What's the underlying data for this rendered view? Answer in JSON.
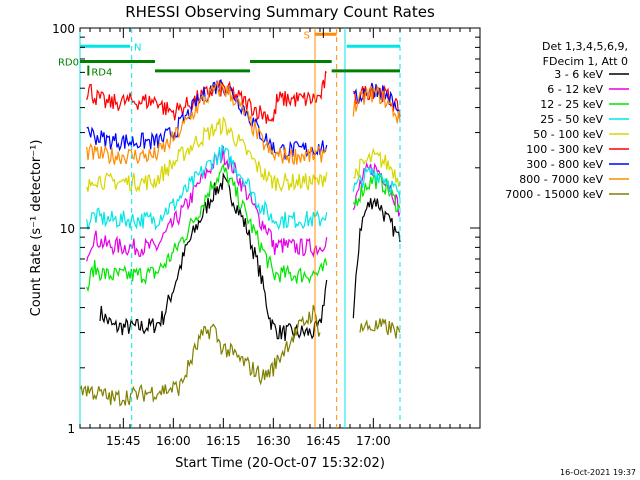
{
  "chart_data": {
    "type": "line",
    "title": "RHESSI Observing Summary Count Rates",
    "xlabel": "Start Time (20-Oct-07 15:32:02)",
    "ylabel": "Count Rate (s⁻¹ detector⁻¹)",
    "yscale": "log",
    "ylim": [
      1,
      100
    ],
    "xlim_min": [
      0,
      120
    ],
    "x_ticks": [
      {
        "min": 13,
        "label": "15:45"
      },
      {
        "min": 28,
        "label": "16:00"
      },
      {
        "min": 43,
        "label": "16:15"
      },
      {
        "min": 58,
        "label": "16:30"
      },
      {
        "min": 73,
        "label": "16:45"
      },
      {
        "min": 88,
        "label": "17:00"
      }
    ],
    "y_ticks": [
      {
        "value": 1,
        "label": "1"
      },
      {
        "value": 10,
        "label": "10"
      },
      {
        "value": 100,
        "label": "100"
      }
    ],
    "legend_header": [
      "Det 1,3,4,5,6,9,",
      "FDecim 1, Att 0"
    ],
    "legend_position": "right",
    "series": [
      {
        "name": "3 - 6 keV",
        "color": "#000000",
        "x": [
          0,
          2,
          4,
          6,
          10,
          15,
          20,
          23,
          25,
          28,
          32,
          36,
          40,
          43,
          46,
          50,
          54,
          57,
          58,
          60,
          65,
          70,
          72,
          74,
          81,
          82,
          84,
          86,
          88,
          90,
          92,
          94,
          96
        ],
        "y": [
          null,
          null,
          null,
          3.8,
          3.2,
          3.2,
          3.2,
          3.3,
          3.6,
          5,
          8,
          11,
          15,
          17,
          14,
          10,
          6,
          3.5,
          3.2,
          3,
          3,
          3,
          3.2,
          5.5,
          null,
          3.5,
          10,
          12.5,
          14,
          13,
          11,
          10,
          8.5
        ]
      },
      {
        "name": "6 - 12 keV",
        "color": "#e600e6",
        "x": [
          2,
          4,
          8,
          15,
          22,
          23,
          25,
          28,
          32,
          36,
          40,
          43,
          46,
          50,
          54,
          57,
          58,
          60,
          65,
          70,
          72,
          74,
          81,
          82,
          84,
          86,
          88,
          90,
          92,
          94,
          96
        ],
        "y": [
          7.5,
          9,
          8.2,
          8,
          8,
          8,
          9,
          10.5,
          13,
          17,
          21,
          23.5,
          20,
          15,
          11,
          9.5,
          8,
          8.2,
          8,
          8,
          8,
          9,
          null,
          12,
          16.5,
          19,
          20,
          19,
          17.5,
          15,
          12
        ]
      },
      {
        "name": "12 - 25 keV",
        "color": "#00e600",
        "x": [
          2,
          4,
          8,
          15,
          22,
          23,
          25,
          28,
          32,
          36,
          40,
          43,
          46,
          50,
          54,
          57,
          58,
          60,
          65,
          70,
          72,
          74,
          81,
          82,
          84,
          86,
          88,
          90,
          92,
          94,
          96
        ],
        "y": [
          4.8,
          6.3,
          5.8,
          5.8,
          5.9,
          6,
          6.5,
          7.5,
          9.5,
          12.5,
          17,
          19.5,
          16,
          11.5,
          8.3,
          6.5,
          5.8,
          5.9,
          5.8,
          5.9,
          5.9,
          6.5,
          null,
          13,
          15,
          16.5,
          17.5,
          17,
          16,
          14,
          12.5
        ]
      },
      {
        "name": "25 - 50 keV",
        "color": "#00e6e6",
        "x": [
          2,
          4,
          8,
          15,
          22,
          23,
          25,
          28,
          32,
          36,
          40,
          43,
          46,
          50,
          54,
          57,
          58,
          60,
          65,
          70,
          72,
          74,
          81,
          82,
          84,
          86,
          88,
          90,
          92,
          94,
          96
        ],
        "y": [
          10.5,
          11.5,
          11,
          11,
          11,
          11,
          12,
          13,
          15.5,
          18.5,
          22,
          24,
          21,
          17,
          13,
          11.5,
          11,
          11,
          11,
          11,
          11,
          12,
          null,
          15.5,
          17,
          18.5,
          19,
          18.5,
          17.5,
          16,
          14
        ]
      },
      {
        "name": "50 - 100 keV",
        "color": "#d7d700",
        "x": [
          2,
          4,
          8,
          15,
          22,
          23,
          25,
          28,
          32,
          36,
          40,
          43,
          46,
          50,
          54,
          57,
          58,
          60,
          65,
          70,
          72,
          74,
          81,
          82,
          84,
          86,
          88,
          90,
          92,
          94,
          96
        ],
        "y": [
          15,
          18,
          17,
          17,
          17,
          17.5,
          19,
          21,
          24.5,
          28,
          31,
          33,
          29,
          24,
          19.5,
          17.5,
          17,
          17,
          17,
          17,
          17,
          19,
          null,
          18,
          20,
          21.5,
          22.5,
          22,
          21,
          19.5,
          17
        ]
      },
      {
        "name": "100 - 300 keV",
        "color": "#ff0000",
        "x": [
          2,
          3,
          4,
          8,
          15,
          22,
          23,
          25,
          28,
          32,
          36,
          40,
          43,
          46,
          50,
          54,
          57,
          58,
          59,
          60,
          65,
          70,
          72,
          73,
          74,
          81,
          82,
          84,
          86,
          88,
          90,
          92,
          94,
          96
        ],
        "y": [
          48,
          50,
          46,
          42,
          43,
          43,
          44,
          40,
          38,
          41,
          45,
          49,
          50,
          47,
          42,
          38,
          36,
          34,
          43,
          44,
          44,
          44,
          45,
          50,
          60,
          null,
          44,
          46,
          48,
          49,
          48,
          46,
          42,
          37
        ]
      },
      {
        "name": "300 - 800 keV",
        "color": "#0000ff",
        "x": [
          2,
          4,
          8,
          15,
          22,
          23,
          25,
          28,
          32,
          36,
          40,
          43,
          46,
          50,
          54,
          57,
          58,
          60,
          65,
          70,
          72,
          74,
          81,
          82,
          84,
          86,
          88,
          90,
          92,
          94,
          96
        ],
        "y": [
          32,
          29,
          27.5,
          27,
          27,
          27,
          28,
          30,
          36,
          44,
          51,
          52,
          47,
          38,
          30,
          26.5,
          25,
          24.5,
          24.5,
          25,
          25,
          26,
          null,
          43,
          46,
          49,
          50,
          49,
          46,
          42,
          36
        ]
      },
      {
        "name": "800 - 7000 keV",
        "color": "#ff8c00",
        "x": [
          2,
          4,
          8,
          15,
          22,
          23,
          25,
          28,
          32,
          36,
          40,
          43,
          46,
          50,
          54,
          57,
          58,
          60,
          65,
          70,
          72,
          74,
          81,
          82,
          84,
          86,
          88,
          90,
          92,
          94,
          96
        ],
        "y": [
          24,
          23.5,
          23,
          23,
          23,
          23.5,
          25,
          28,
          34,
          42,
          48,
          50,
          45,
          36,
          28,
          24,
          23,
          23,
          23,
          23,
          23,
          25,
          null,
          40,
          43,
          46,
          47,
          46,
          43,
          39,
          34
        ]
      },
      {
        "name": "7000 - 15000 keV",
        "color": "#808000",
        "x": [
          0,
          10,
          20,
          30,
          36,
          40,
          42,
          48,
          55,
          58,
          62,
          66,
          70,
          72,
          81,
          84,
          88,
          92,
          96
        ],
        "y": [
          1.6,
          1.4,
          1.5,
          1.6,
          2.8,
          3.2,
          2.6,
          2.2,
          1.8,
          2,
          2.6,
          3.2,
          3.8,
          3,
          null,
          3.2,
          3.2,
          3.2,
          3
        ]
      }
    ],
    "annotations": [
      {
        "label": "N",
        "color": "#00e6e6",
        "kind": "bar",
        "x0": 0,
        "x1": 15,
        "y": 81
      },
      {
        "label": "S",
        "color": "#ff8c00",
        "kind": "bar",
        "x0": 70.5,
        "x1": 77,
        "y": 93
      },
      {
        "label": "RD0",
        "color": "#008000",
        "kind": "bar",
        "x0": 0,
        "x1": 22.5,
        "y": 68
      },
      {
        "label": "RD4",
        "color": "#008000",
        "kind": "tick",
        "x0": 2.5,
        "x1": 2.5,
        "y": 62
      },
      {
        "label": "",
        "color": "#008000",
        "kind": "bar",
        "x0": 22.5,
        "x1": 51,
        "y": 61
      },
      {
        "label": "",
        "color": "#008000",
        "kind": "bar",
        "x0": 51,
        "x1": 75.5,
        "y": 68
      },
      {
        "label": "",
        "color": "#008000",
        "kind": "bar",
        "x0": 75.5,
        "x1": 96,
        "y": 61
      },
      {
        "label": "",
        "color": "#00e6e6",
        "kind": "bar",
        "x0": 80,
        "x1": 96,
        "y": 81
      }
    ],
    "vlines": [
      {
        "x": 0,
        "color": "#00e6e6",
        "style": "solid"
      },
      {
        "x": 15.5,
        "color": "#00e6e6",
        "style": "dashed"
      },
      {
        "x": 70.5,
        "color": "#ff8c00",
        "style": "solid"
      },
      {
        "x": 77,
        "color": "#ff8c00",
        "style": "dashed"
      },
      {
        "x": 79.5,
        "color": "#00e6e6",
        "style": "solid"
      },
      {
        "x": 96,
        "color": "#00e6e6",
        "style": "dashed"
      }
    ],
    "grid": false
  },
  "timestamp": "16-Oct-2021 19:37"
}
